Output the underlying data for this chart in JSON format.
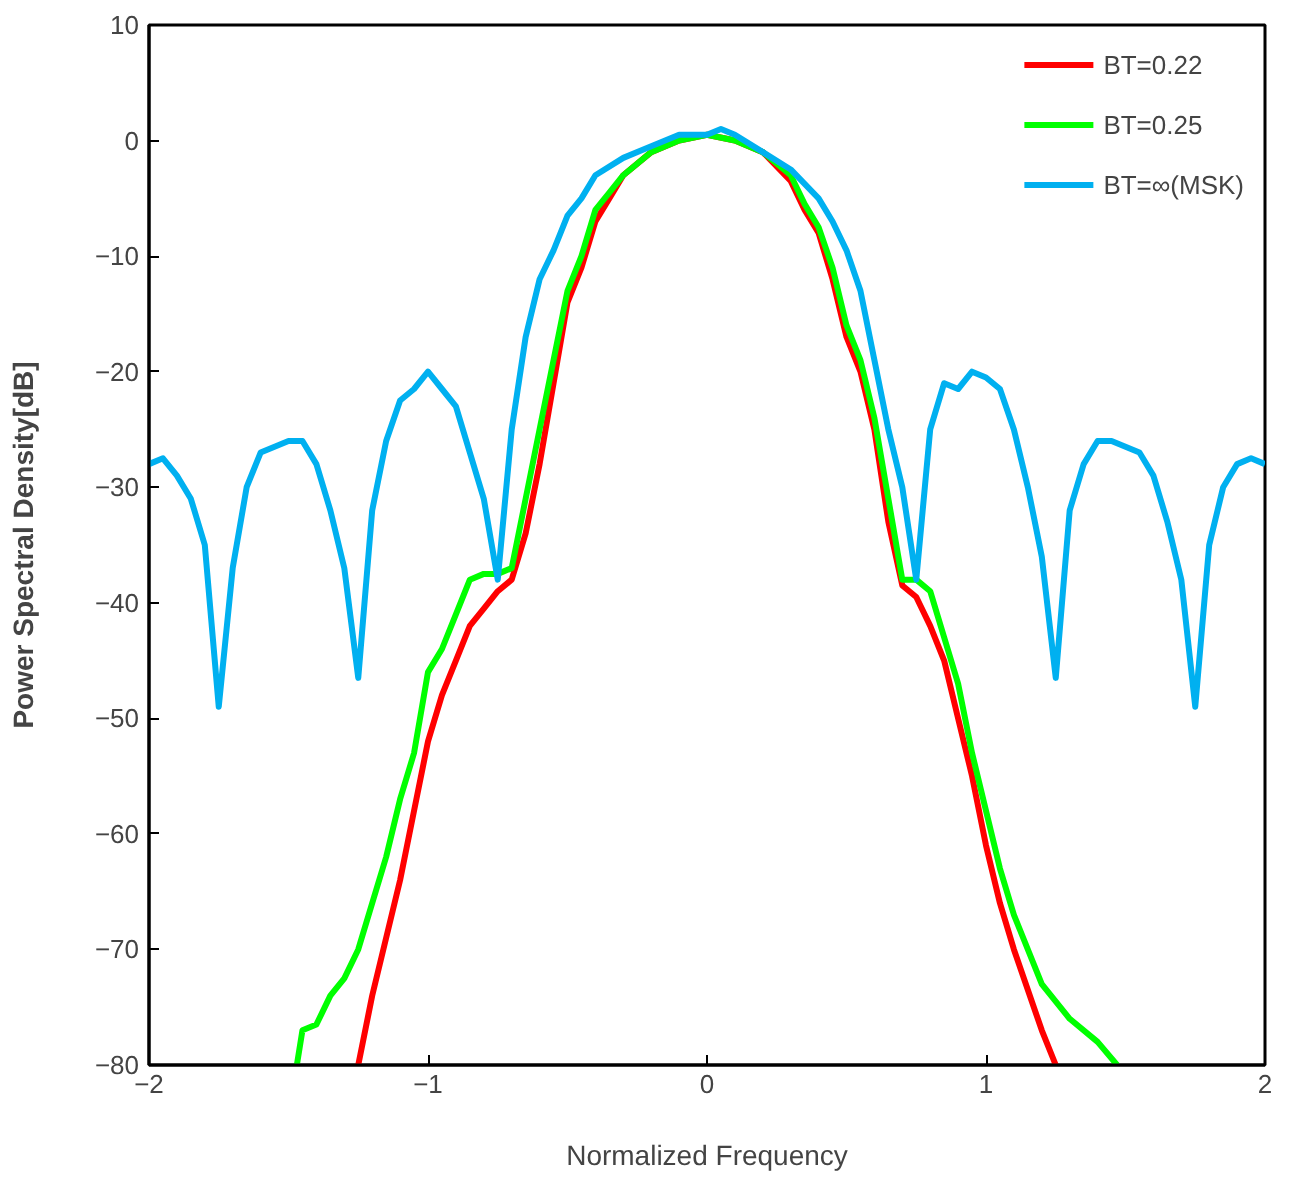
{
  "chart_data": {
    "type": "line",
    "xlabel": "Normalized Frequency",
    "ylabel": "Power Spectral Density[dB]",
    "xlim": [
      -2,
      2
    ],
    "ylim": [
      -80,
      10
    ],
    "xticks": [
      {
        "value": -2,
        "label": "−2"
      },
      {
        "value": -1,
        "label": "−1"
      },
      0,
      1,
      2
    ],
    "yticks": [
      {
        "value": -80,
        "label": "−80"
      },
      {
        "value": -70,
        "label": "−70"
      },
      {
        "value": -60,
        "label": "−60"
      },
      {
        "value": -50,
        "label": "−50"
      },
      {
        "value": -40,
        "label": "−40"
      },
      {
        "value": -30,
        "label": "−30"
      },
      {
        "value": -20,
        "label": "−20"
      },
      {
        "value": -10,
        "label": "−10"
      },
      0,
      10
    ],
    "grid": false,
    "legend": "top right",
    "marker": "none",
    "line_style": "solid",
    "series": [
      {
        "name": "BT=0.22",
        "color": "#ff0000",
        "x": [
          -1.25,
          -1.2,
          -1.1,
          -1.05,
          -1.0,
          -0.95,
          -0.9,
          -0.85,
          -0.8,
          -0.75,
          -0.7,
          -0.65,
          -0.6,
          -0.55,
          -0.5,
          -0.45,
          -0.4,
          -0.35,
          -0.3,
          -0.2,
          -0.1,
          0,
          0.1,
          0.2,
          0.3,
          0.35,
          0.4,
          0.45,
          0.5,
          0.55,
          0.6,
          0.65,
          0.7,
          0.75,
          0.8,
          0.85,
          0.9,
          0.95,
          1.0,
          1.05,
          1.1,
          1.2,
          1.25
        ],
        "values": [
          -80,
          -74,
          -64,
          -58,
          -52,
          -48,
          -45,
          -42,
          -40.5,
          -39,
          -38,
          -34,
          -28,
          -21,
          -14,
          -11,
          -7,
          -5,
          -3,
          -1,
          0,
          0.5,
          0,
          -1,
          -3.5,
          -6,
          -8,
          -12,
          -17,
          -20,
          -25,
          -33,
          -38.5,
          -39.5,
          -42,
          -45,
          -50,
          -55,
          -61,
          -66,
          -70,
          -77,
          -80
        ]
      },
      {
        "name": "BT=0.25",
        "color": "#00ff00",
        "x": [
          -1.47,
          -1.45,
          -1.4,
          -1.35,
          -1.3,
          -1.25,
          -1.2,
          -1.15,
          -1.1,
          -1.05,
          -1.0,
          -0.95,
          -0.9,
          -0.85,
          -0.8,
          -0.75,
          -0.7,
          -0.65,
          -0.6,
          -0.55,
          -0.5,
          -0.45,
          -0.4,
          -0.35,
          -0.3,
          -0.2,
          -0.1,
          0,
          0.1,
          0.2,
          0.3,
          0.35,
          0.4,
          0.45,
          0.5,
          0.55,
          0.6,
          0.65,
          0.7,
          0.75,
          0.8,
          0.85,
          0.9,
          0.95,
          1.0,
          1.05,
          1.1,
          1.2,
          1.3,
          1.4,
          1.47
        ],
        "values": [
          -80,
          -77,
          -76.5,
          -74,
          -72.5,
          -70,
          -66,
          -62,
          -57,
          -53,
          -46,
          -44,
          -41,
          -38,
          -37.5,
          -37.5,
          -37,
          -31,
          -25,
          -19,
          -13,
          -10,
          -6,
          -4.5,
          -3,
          -1,
          0,
          0.5,
          0,
          -1,
          -3,
          -5.5,
          -7.5,
          -11,
          -16,
          -19,
          -24,
          -31,
          -38,
          -38,
          -39,
          -43,
          -47,
          -53,
          -58,
          -63,
          -67,
          -73,
          -76,
          -78,
          -80
        ]
      },
      {
        "name": "BT=∞(MSK)",
        "color": "#00b0f0",
        "x": [
          -2,
          -1.95,
          -1.9,
          -1.85,
          -1.8,
          -1.75,
          -1.7,
          -1.65,
          -1.6,
          -1.55,
          -1.5,
          -1.45,
          -1.4,
          -1.35,
          -1.3,
          -1.25,
          -1.2,
          -1.15,
          -1.1,
          -1.05,
          -1.0,
          -0.95,
          -0.9,
          -0.85,
          -0.8,
          -0.75,
          -0.7,
          -0.65,
          -0.6,
          -0.55,
          -0.5,
          -0.45,
          -0.4,
          -0.3,
          -0.2,
          -0.1,
          0,
          0.05,
          0.1,
          0.2,
          0.3,
          0.4,
          0.45,
          0.5,
          0.55,
          0.6,
          0.65,
          0.7,
          0.75,
          0.8,
          0.85,
          0.9,
          0.95,
          1.0,
          1.05,
          1.1,
          1.15,
          1.2,
          1.25,
          1.3,
          1.35,
          1.4,
          1.45,
          1.5,
          1.55,
          1.6,
          1.65,
          1.7,
          1.75,
          1.8,
          1.85,
          1.9,
          1.95,
          2
        ],
        "values": [
          -28,
          -27.5,
          -29,
          -31,
          -35,
          -49,
          -37,
          -30,
          -27,
          -26.5,
          -26,
          -26,
          -28,
          -32,
          -37,
          -46.5,
          -32,
          -26,
          -22.5,
          -21.5,
          -20,
          -21.5,
          -23,
          -27,
          -31,
          -38,
          -25,
          -17,
          -12,
          -9.5,
          -6.5,
          -5,
          -3,
          -1.5,
          -0.5,
          0.5,
          0.5,
          1,
          0.5,
          -1,
          -2.5,
          -5,
          -7,
          -9.5,
          -13,
          -19,
          -25,
          -30,
          -38,
          -25,
          -21,
          -21.5,
          -20,
          -20.5,
          -21.5,
          -25,
          -30,
          -36,
          -46.5,
          -32,
          -28,
          -26,
          -26,
          -26.5,
          -27,
          -29,
          -33,
          -38,
          -49,
          -35,
          -30,
          -28,
          -27.5,
          -28
        ]
      }
    ]
  }
}
